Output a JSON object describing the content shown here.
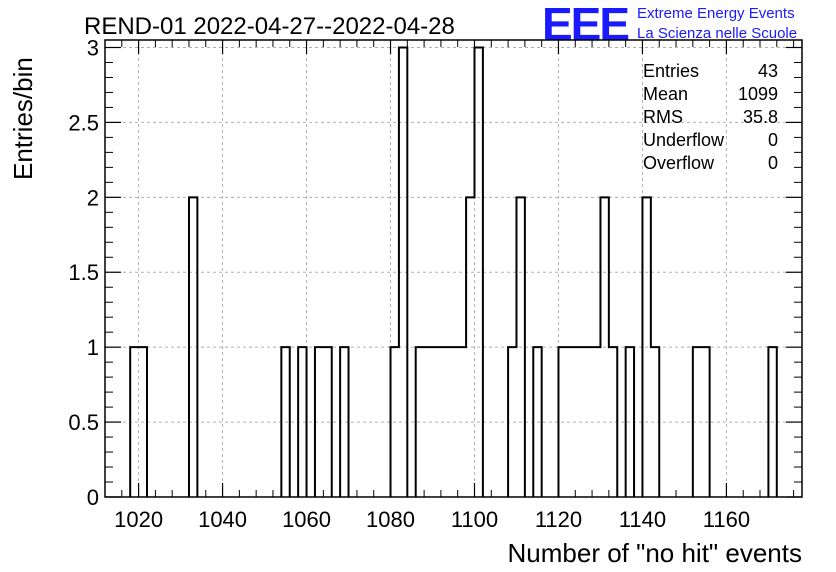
{
  "chart_data": {
    "type": "histogram",
    "title": "REND-01 2022-04-27--2022-04-28",
    "xlabel": "Number of \"no hit\" events",
    "ylabel": "Entries/bin",
    "xlim": [
      1012,
      1178
    ],
    "ylim": [
      0,
      3.05
    ],
    "grid": true,
    "bin_width": 2,
    "x_ticks": [
      "1020",
      "1040",
      "1060",
      "1080",
      "1100",
      "1120",
      "1140",
      "1160"
    ],
    "x_tick_values": [
      1020,
      1040,
      1060,
      1080,
      1100,
      1120,
      1140,
      1160
    ],
    "y_ticks": [
      "0",
      "0.5",
      "1",
      "1.5",
      "2",
      "2.5",
      "3"
    ],
    "y_tick_values": [
      0,
      0.5,
      1,
      1.5,
      2,
      2.5,
      3
    ],
    "bins": [
      {
        "start": 1018,
        "count": 1
      },
      {
        "start": 1020,
        "count": 1
      },
      {
        "start": 1032,
        "count": 2
      },
      {
        "start": 1054,
        "count": 1
      },
      {
        "start": 1058,
        "count": 1
      },
      {
        "start": 1062,
        "count": 1
      },
      {
        "start": 1064,
        "count": 1
      },
      {
        "start": 1068,
        "count": 1
      },
      {
        "start": 1080,
        "count": 1
      },
      {
        "start": 1082,
        "count": 3
      },
      {
        "start": 1086,
        "count": 1
      },
      {
        "start": 1088,
        "count": 1
      },
      {
        "start": 1090,
        "count": 1
      },
      {
        "start": 1092,
        "count": 1
      },
      {
        "start": 1094,
        "count": 1
      },
      {
        "start": 1096,
        "count": 1
      },
      {
        "start": 1098,
        "count": 2
      },
      {
        "start": 1100,
        "count": 3
      },
      {
        "start": 1108,
        "count": 1
      },
      {
        "start": 1110,
        "count": 2
      },
      {
        "start": 1114,
        "count": 1
      },
      {
        "start": 1120,
        "count": 1
      },
      {
        "start": 1122,
        "count": 1
      },
      {
        "start": 1124,
        "count": 1
      },
      {
        "start": 1126,
        "count": 1
      },
      {
        "start": 1128,
        "count": 1
      },
      {
        "start": 1130,
        "count": 2
      },
      {
        "start": 1132,
        "count": 1
      },
      {
        "start": 1136,
        "count": 1
      },
      {
        "start": 1140,
        "count": 2
      },
      {
        "start": 1142,
        "count": 1
      },
      {
        "start": 1152,
        "count": 1
      },
      {
        "start": 1154,
        "count": 1
      },
      {
        "start": 1170,
        "count": 1
      }
    ],
    "stats": [
      {
        "label": "Entries",
        "value": "43"
      },
      {
        "label": "Mean",
        "value": "1099"
      },
      {
        "label": "RMS",
        "value": "35.8"
      },
      {
        "label": "Underflow",
        "value": "0"
      },
      {
        "label": "Overflow",
        "value": "0"
      }
    ]
  },
  "logo": {
    "mark": "EEE",
    "line1": "Extreme Energy Events",
    "line2": "La Scienza nelle Scuole",
    "color": "#1a1aff"
  },
  "colors": {
    "axis": "#000000",
    "grid": "#b0b0b0",
    "line": "#000000"
  }
}
